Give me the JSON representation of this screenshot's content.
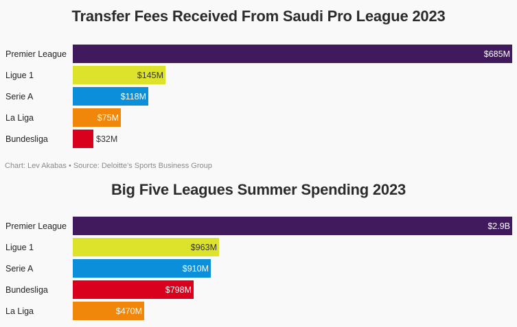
{
  "charts": [
    {
      "title": "Transfer Fees Received From Saudi Pro League 2023",
      "caption": "Chart: Lev Akabas • Source: Deloitte's Sports Business Group"
    },
    {
      "title": "Big Five Leagues Summer Spending 2023"
    }
  ],
  "chart_data": [
    {
      "type": "bar",
      "orientation": "horizontal",
      "title": "Transfer Fees Received From Saudi Pro League 2023",
      "unit": "$M",
      "categories": [
        "Premier League",
        "Ligue 1",
        "Serie A",
        "La Liga",
        "Bundesliga"
      ],
      "values": [
        685,
        145,
        118,
        75,
        32
      ],
      "labels": [
        "$685M",
        "$145M",
        "$118M",
        "$75M",
        "$32M"
      ],
      "colors": [
        "#401a5c",
        "#dde22b",
        "#0b8fdb",
        "#f0870b",
        "#d8001c"
      ],
      "xlim": [
        0,
        685
      ],
      "grid": false
    },
    {
      "type": "bar",
      "orientation": "horizontal",
      "title": "Big Five Leagues Summer Spending 2023",
      "unit": "$M",
      "categories": [
        "Premier League",
        "Ligue 1",
        "Serie A",
        "Bundesliga",
        "La Liga"
      ],
      "values": [
        2900,
        963,
        910,
        798,
        470
      ],
      "labels": [
        "$2.9B",
        "$963M",
        "$910M",
        "$798M",
        "$470M"
      ],
      "colors": [
        "#401a5c",
        "#dde22b",
        "#0b8fdb",
        "#d8001c",
        "#f0870b"
      ],
      "xlim": [
        0,
        2900
      ],
      "grid": false
    }
  ]
}
